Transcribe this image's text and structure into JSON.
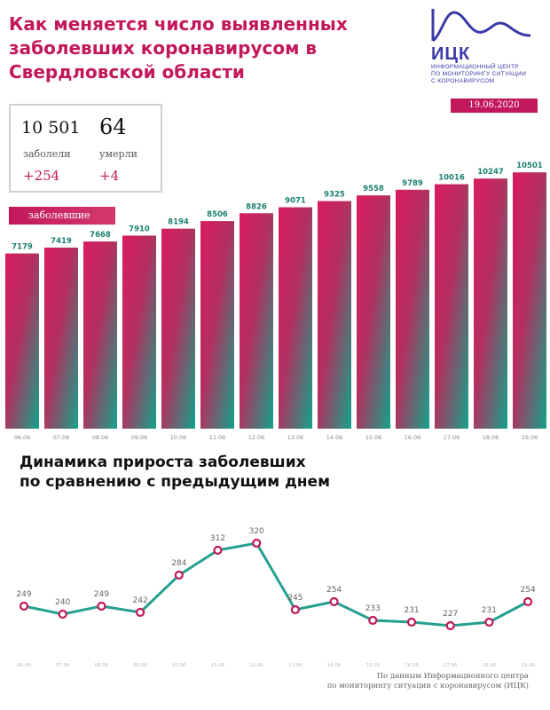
{
  "header": {
    "title_line1": "Как меняется число выявленных",
    "title_line2": "заболевших коронавирусом в",
    "title_line3": "Свердловской области"
  },
  "logo": {
    "name": "ИЦК",
    "sub_line1": "ИНФОРМАЦИОННЫЙ ЦЕНТР",
    "sub_line2": "ПО МОНИТОРИНГУ СИТУАЦИИ",
    "sub_line3": "С КОРОНАВИРУСОМ",
    "color": "#3a3aa8"
  },
  "date_badge": "19.06.2020",
  "stats": {
    "cases": "10 501",
    "cases_label": "заболели",
    "cases_delta": "+254",
    "deaths": "64",
    "deaths_label": "умерли",
    "deaths_delta": "+4"
  },
  "legend_label": "заболевшие",
  "section2_title_line1": "Динамика прироста заболевших",
  "section2_title_line2": "по сравнению с предыдущим днем",
  "footer_line1": "По данным Информационного центра",
  "footer_line2": "по мониторингу ситуации с коронавирусом (ИЦК)",
  "colors": {
    "accent": "#c2185b",
    "teal": "#1fa38a",
    "line": "#26a08f"
  },
  "chart_data": [
    {
      "type": "bar",
      "categories": [
        "06.06",
        "07.06",
        "08.06",
        "09.06",
        "10.06",
        "11.06",
        "12.06",
        "13.06",
        "14.06",
        "15.06",
        "16.06",
        "17.06",
        "18.06",
        "19.06"
      ],
      "values": [
        7179,
        7419,
        7668,
        7910,
        8194,
        8506,
        8826,
        9071,
        9325,
        9558,
        9789,
        10016,
        10247,
        10501
      ],
      "title": "",
      "xlabel": "",
      "ylabel": "",
      "ylim": [
        0,
        10800
      ],
      "grid": false
    },
    {
      "type": "line",
      "categories": [
        "06.06",
        "07.06",
        "08.06",
        "09.06",
        "10.06",
        "11.06",
        "12.06",
        "13.06",
        "14.06",
        "15.06",
        "16.06",
        "17.06",
        "18.06",
        "19.06"
      ],
      "values": [
        249,
        240,
        249,
        242,
        284,
        312,
        320,
        245,
        254,
        233,
        231,
        227,
        231,
        254
      ],
      "title": "",
      "xlabel": "",
      "ylabel": "",
      "ylim": [
        200,
        340
      ],
      "grid": false
    }
  ]
}
